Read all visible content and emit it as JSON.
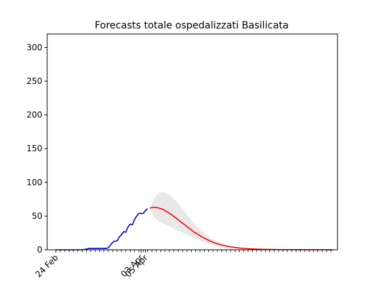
{
  "chart_data": {
    "type": "line",
    "title": "Forecasts totale ospedalizzati Basilicata",
    "xlabel": "",
    "ylabel": "",
    "ylim": [
      0,
      320
    ],
    "yticks": [
      0,
      50,
      100,
      150,
      200,
      250,
      300
    ],
    "xlim": [
      "2020-02-20",
      "2020-07-02"
    ],
    "x_tick_labels": [
      {
        "date": "2020-02-24",
        "label": "24 Feb"
      },
      {
        "date": "2020-04-03",
        "label": "03 Apr"
      },
      {
        "date": "2020-04-05",
        "label": "05 Apr"
      }
    ],
    "minor_ticks": {
      "start": "2020-02-24",
      "end": "2020-06-30",
      "step_days": 2
    },
    "grid": false,
    "series": [
      {
        "name": "",
        "role": "observed",
        "color": "#0000cc",
        "points": [
          [
            "2020-02-24",
            0
          ],
          [
            "2020-02-26",
            0
          ],
          [
            "2020-02-28",
            0
          ],
          [
            "2020-03-01",
            0
          ],
          [
            "2020-03-03",
            0
          ],
          [
            "2020-03-05",
            0
          ],
          [
            "2020-03-07",
            0
          ],
          [
            "2020-03-09",
            1
          ],
          [
            "2020-03-10",
            2
          ],
          [
            "2020-03-12",
            2
          ],
          [
            "2020-03-14",
            2
          ],
          [
            "2020-03-16",
            2
          ],
          [
            "2020-03-18",
            2
          ],
          [
            "2020-03-19",
            3
          ],
          [
            "2020-03-20",
            7
          ],
          [
            "2020-03-21",
            11
          ],
          [
            "2020-03-22",
            13
          ],
          [
            "2020-03-23",
            13
          ],
          [
            "2020-03-24",
            19
          ],
          [
            "2020-03-25",
            22
          ],
          [
            "2020-03-26",
            27
          ],
          [
            "2020-03-27",
            26
          ],
          [
            "2020-03-28",
            34
          ],
          [
            "2020-03-29",
            38
          ],
          [
            "2020-03-30",
            37
          ],
          [
            "2020-03-31",
            45
          ],
          [
            "2020-04-01",
            50
          ],
          [
            "2020-04-02",
            54
          ],
          [
            "2020-04-03",
            54
          ],
          [
            "2020-04-04",
            54
          ],
          [
            "2020-04-05",
            58
          ],
          [
            "2020-04-06",
            61
          ]
        ]
      },
      {
        "name": "",
        "role": "forecast",
        "color": "#ff0000",
        "points": [
          [
            "2020-04-07",
            62
          ],
          [
            "2020-04-09",
            63
          ],
          [
            "2020-04-11",
            62
          ],
          [
            "2020-04-13",
            60
          ],
          [
            "2020-04-15",
            56
          ],
          [
            "2020-04-17",
            52
          ],
          [
            "2020-04-19",
            47
          ],
          [
            "2020-04-21",
            42
          ],
          [
            "2020-04-23",
            37
          ],
          [
            "2020-04-25",
            32
          ],
          [
            "2020-04-27",
            27
          ],
          [
            "2020-04-29",
            23
          ],
          [
            "2020-05-01",
            19
          ],
          [
            "2020-05-03",
            15.5
          ],
          [
            "2020-05-05",
            12.5
          ],
          [
            "2020-05-07",
            10
          ],
          [
            "2020-05-09",
            8
          ],
          [
            "2020-05-11",
            6.3
          ],
          [
            "2020-05-13",
            5
          ],
          [
            "2020-05-15",
            3.9
          ],
          [
            "2020-05-17",
            3
          ],
          [
            "2020-05-19",
            2.3
          ],
          [
            "2020-05-21",
            1.8
          ],
          [
            "2020-05-23",
            1.4
          ],
          [
            "2020-05-25",
            1.1
          ],
          [
            "2020-05-27",
            0.8
          ],
          [
            "2020-05-29",
            0.6
          ],
          [
            "2020-06-02",
            0.4
          ],
          [
            "2020-06-06",
            0.25
          ],
          [
            "2020-06-12",
            0.15
          ],
          [
            "2020-06-18",
            0.08
          ],
          [
            "2020-06-24",
            0.04
          ],
          [
            "2020-06-30",
            0.02
          ]
        ]
      }
    ],
    "band": {
      "role": "forecast-uncertainty",
      "color": "#e8e8e8",
      "upper": [
        [
          "2020-04-07",
          62
        ],
        [
          "2020-04-09",
          76
        ],
        [
          "2020-04-11",
          84
        ],
        [
          "2020-04-13",
          86
        ],
        [
          "2020-04-15",
          84
        ],
        [
          "2020-04-17",
          79
        ],
        [
          "2020-04-19",
          72
        ],
        [
          "2020-04-21",
          64
        ],
        [
          "2020-04-23",
          56
        ],
        [
          "2020-04-25",
          48
        ],
        [
          "2020-04-27",
          40
        ],
        [
          "2020-04-29",
          33
        ],
        [
          "2020-05-01",
          27
        ],
        [
          "2020-05-03",
          22
        ],
        [
          "2020-05-05",
          17
        ],
        [
          "2020-05-07",
          13.5
        ],
        [
          "2020-05-09",
          10.5
        ],
        [
          "2020-05-11",
          8
        ],
        [
          "2020-05-13",
          6
        ],
        [
          "2020-05-15",
          4.6
        ],
        [
          "2020-05-17",
          3.5
        ],
        [
          "2020-05-19",
          2.6
        ],
        [
          "2020-05-21",
          2
        ],
        [
          "2020-05-23",
          1.5
        ],
        [
          "2020-05-27",
          0.9
        ],
        [
          "2020-06-02",
          0.5
        ],
        [
          "2020-06-10",
          0.2
        ],
        [
          "2020-06-20",
          0.08
        ],
        [
          "2020-06-30",
          0.03
        ]
      ],
      "lower": [
        [
          "2020-04-07",
          62
        ],
        [
          "2020-04-09",
          47
        ],
        [
          "2020-04-11",
          42
        ],
        [
          "2020-04-13",
          39
        ],
        [
          "2020-04-15",
          36
        ],
        [
          "2020-04-17",
          33
        ],
        [
          "2020-04-19",
          30
        ],
        [
          "2020-04-21",
          27
        ],
        [
          "2020-04-23",
          24
        ],
        [
          "2020-04-25",
          21
        ],
        [
          "2020-04-27",
          18
        ],
        [
          "2020-04-29",
          15
        ],
        [
          "2020-05-01",
          12.5
        ],
        [
          "2020-05-03",
          10
        ],
        [
          "2020-05-05",
          8
        ],
        [
          "2020-05-07",
          6.3
        ],
        [
          "2020-05-09",
          5
        ],
        [
          "2020-05-11",
          3.8
        ],
        [
          "2020-05-13",
          2.9
        ],
        [
          "2020-05-15",
          2.2
        ],
        [
          "2020-05-17",
          1.6
        ],
        [
          "2020-05-19",
          1.2
        ],
        [
          "2020-05-21",
          0.9
        ],
        [
          "2020-05-23",
          0.7
        ],
        [
          "2020-05-27",
          0.4
        ],
        [
          "2020-06-02",
          0.2
        ],
        [
          "2020-06-10",
          0.08
        ],
        [
          "2020-06-20",
          0.03
        ],
        [
          "2020-06-30",
          0.01
        ]
      ]
    }
  }
}
